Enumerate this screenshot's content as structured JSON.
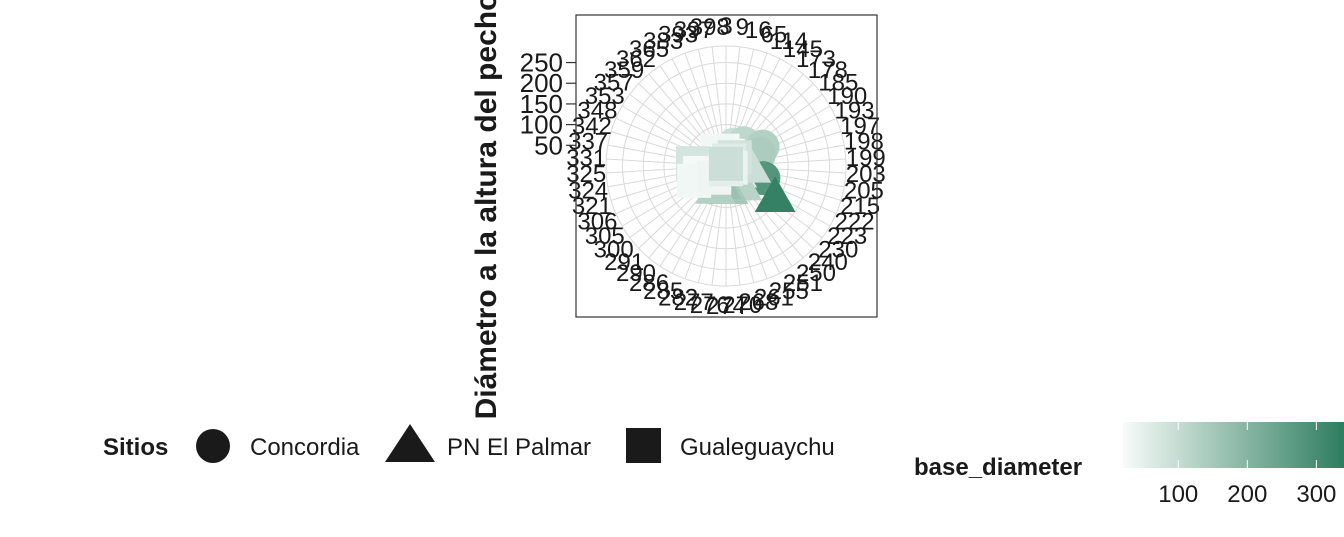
{
  "chart_data": {
    "type": "scatter",
    "coord": "polar",
    "ylabel": "Diámetro a la altura del pecho",
    "r_ticks": [
      50,
      100,
      150,
      200,
      250
    ],
    "r_max": 290,
    "angle_labels": [
      "3",
      "9",
      "16",
      "65",
      "114",
      "145",
      "173",
      "178",
      "185",
      "190",
      "193",
      "197",
      "198",
      "199",
      "203",
      "205",
      "215",
      "222",
      "223",
      "230",
      "240",
      "250",
      "251",
      "255",
      "261",
      "268",
      "270",
      "274",
      "276",
      "277",
      "282",
      "285",
      "286",
      "290",
      "291",
      "300",
      "305",
      "306",
      "321",
      "324",
      "325",
      "331",
      "337",
      "342",
      "348",
      "353",
      "357",
      "359",
      "362",
      "365",
      "383",
      "393",
      "397",
      "398"
    ],
    "shape_legend": {
      "title": "Sitios",
      "items": [
        {
          "label": "Concordia",
          "shape": "circle"
        },
        {
          "label": "PN El Palmar",
          "shape": "triangle"
        },
        {
          "label": "Gualeguaychu",
          "shape": "square"
        }
      ]
    },
    "color_legend": {
      "title": "base_diameter",
      "ticks": [
        100,
        200,
        300
      ],
      "color_low": "#f7fbf9",
      "color_high": "#2e7d60",
      "domain": [
        20,
        340
      ]
    },
    "points": [
      {
        "angle": 20,
        "dbh": 55,
        "site": "Concordia",
        "base_diameter": 90
      },
      {
        "angle": 38,
        "dbh": 70,
        "site": "Concordia",
        "base_diameter": 110
      },
      {
        "angle": 62,
        "dbh": 100,
        "site": "Concordia",
        "base_diameter": 130
      },
      {
        "angle": 70,
        "dbh": 85,
        "site": "Concordia",
        "base_diameter": 140
      },
      {
        "angle": 108,
        "dbh": 95,
        "site": "Concordia",
        "base_diameter": 280
      },
      {
        "angle": 5,
        "dbh": 32,
        "site": "Concordia",
        "base_diameter": 80
      },
      {
        "angle": 355,
        "dbh": 20,
        "site": "PN El Palmar",
        "base_diameter": 70
      },
      {
        "angle": 120,
        "dbh": 30,
        "site": "PN El Palmar",
        "base_diameter": 60
      },
      {
        "angle": 122,
        "dbh": 140,
        "site": "PN El Palmar",
        "base_diameter": 330
      },
      {
        "angle": 140,
        "dbh": 60,
        "site": "PN El Palmar",
        "base_diameter": 120
      },
      {
        "angle": 175,
        "dbh": 55,
        "site": "PN El Palmar",
        "base_diameter": 150
      },
      {
        "angle": 195,
        "dbh": 45,
        "site": "PN El Palmar",
        "base_diameter": 170
      },
      {
        "angle": 205,
        "dbh": 60,
        "site": "PN El Palmar",
        "base_diameter": 130
      },
      {
        "angle": 93,
        "dbh": 60,
        "site": "PN El Palmar",
        "base_diameter": 90
      },
      {
        "angle": 10,
        "dbh": 25,
        "site": "Gualeguaychu",
        "base_diameter": 20
      },
      {
        "angle": 347,
        "dbh": 38,
        "site": "Gualeguaychu",
        "base_diameter": 25
      },
      {
        "angle": 330,
        "dbh": 42,
        "site": "Gualeguaychu",
        "base_diameter": 30
      },
      {
        "angle": 45,
        "dbh": 30,
        "site": "Gualeguaychu",
        "base_diameter": 80
      },
      {
        "angle": 30,
        "dbh": 15,
        "site": "Gualeguaychu",
        "base_diameter": 60
      },
      {
        "angle": 110,
        "dbh": 12,
        "site": "Gualeguaychu",
        "base_diameter": 40
      },
      {
        "angle": 275,
        "dbh": 80,
        "site": "Gualeguaychu",
        "base_diameter": 75
      },
      {
        "angle": 255,
        "dbh": 65,
        "site": "Gualeguaychu",
        "base_diameter": 25
      },
      {
        "angle": 245,
        "dbh": 85,
        "site": "Gualeguaychu",
        "base_diameter": 30
      },
      {
        "angle": 225,
        "dbh": 40,
        "site": "Gualeguaychu",
        "base_diameter": 35
      },
      {
        "angle": 185,
        "dbh": 8,
        "site": "Gualeguaychu",
        "base_diameter": 50
      },
      {
        "angle": 0,
        "dbh": 5,
        "site": "Gualeguaychu",
        "base_diameter": 90
      }
    ]
  }
}
